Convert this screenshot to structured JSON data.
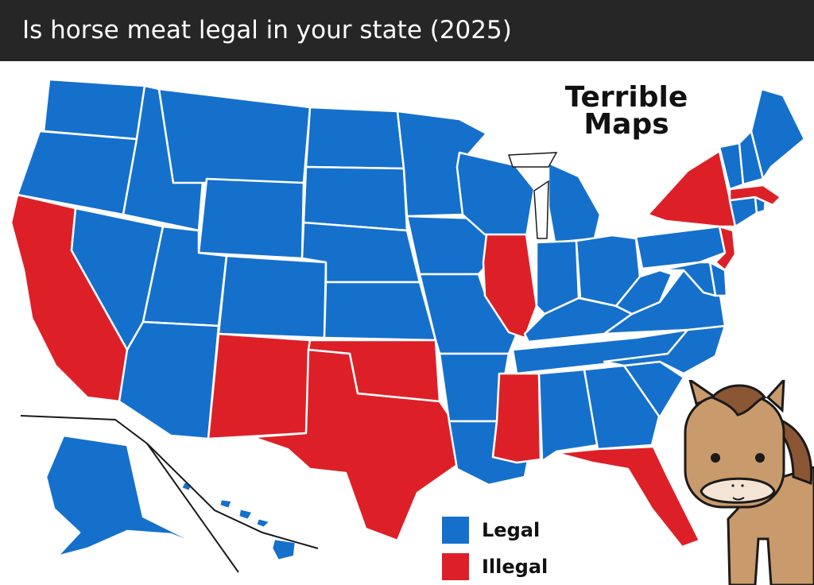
{
  "title": "Is horse meat legal in your state (2025)",
  "brand": {
    "line1": "Terrible",
    "line2": "Maps"
  },
  "colors": {
    "legal": "#1570CC",
    "illegal": "#DD2027",
    "border": "#ffffff",
    "outline": "#1a1a1a"
  },
  "legend": [
    {
      "label": "Legal",
      "status": "legal"
    },
    {
      "label": "Illegal",
      "status": "illegal"
    }
  ],
  "states": [
    {
      "code": "WA",
      "status": "legal"
    },
    {
      "code": "OR",
      "status": "legal"
    },
    {
      "code": "CA",
      "status": "illegal"
    },
    {
      "code": "NV",
      "status": "legal"
    },
    {
      "code": "ID",
      "status": "legal"
    },
    {
      "code": "MT",
      "status": "legal"
    },
    {
      "code": "WY",
      "status": "legal"
    },
    {
      "code": "UT",
      "status": "legal"
    },
    {
      "code": "CO",
      "status": "legal"
    },
    {
      "code": "AZ",
      "status": "legal"
    },
    {
      "code": "NM",
      "status": "illegal"
    },
    {
      "code": "ND",
      "status": "legal"
    },
    {
      "code": "SD",
      "status": "legal"
    },
    {
      "code": "NE",
      "status": "legal"
    },
    {
      "code": "KS",
      "status": "legal"
    },
    {
      "code": "OK",
      "status": "illegal"
    },
    {
      "code": "TX",
      "status": "illegal"
    },
    {
      "code": "MN",
      "status": "legal"
    },
    {
      "code": "IA",
      "status": "legal"
    },
    {
      "code": "MO",
      "status": "legal"
    },
    {
      "code": "AR",
      "status": "legal"
    },
    {
      "code": "LA",
      "status": "legal"
    },
    {
      "code": "WI",
      "status": "legal"
    },
    {
      "code": "IL",
      "status": "illegal"
    },
    {
      "code": "MI",
      "status": "legal"
    },
    {
      "code": "IN",
      "status": "legal"
    },
    {
      "code": "OH",
      "status": "legal"
    },
    {
      "code": "KY",
      "status": "legal"
    },
    {
      "code": "TN",
      "status": "legal"
    },
    {
      "code": "MS",
      "status": "illegal"
    },
    {
      "code": "AL",
      "status": "legal"
    },
    {
      "code": "GA",
      "status": "legal"
    },
    {
      "code": "FL",
      "status": "illegal"
    },
    {
      "code": "SC",
      "status": "legal"
    },
    {
      "code": "NC",
      "status": "legal"
    },
    {
      "code": "VA",
      "status": "legal"
    },
    {
      "code": "WV",
      "status": "legal"
    },
    {
      "code": "PA",
      "status": "legal"
    },
    {
      "code": "NY",
      "status": "illegal"
    },
    {
      "code": "NJ",
      "status": "illegal"
    },
    {
      "code": "DE",
      "status": "legal"
    },
    {
      "code": "MD",
      "status": "legal"
    },
    {
      "code": "CT",
      "status": "legal"
    },
    {
      "code": "RI",
      "status": "legal"
    },
    {
      "code": "MA",
      "status": "illegal"
    },
    {
      "code": "VT",
      "status": "legal"
    },
    {
      "code": "NH",
      "status": "legal"
    },
    {
      "code": "ME",
      "status": "legal"
    },
    {
      "code": "AK",
      "status": "legal"
    },
    {
      "code": "HI",
      "status": "legal"
    }
  ],
  "mascot": "horse-cartoon"
}
